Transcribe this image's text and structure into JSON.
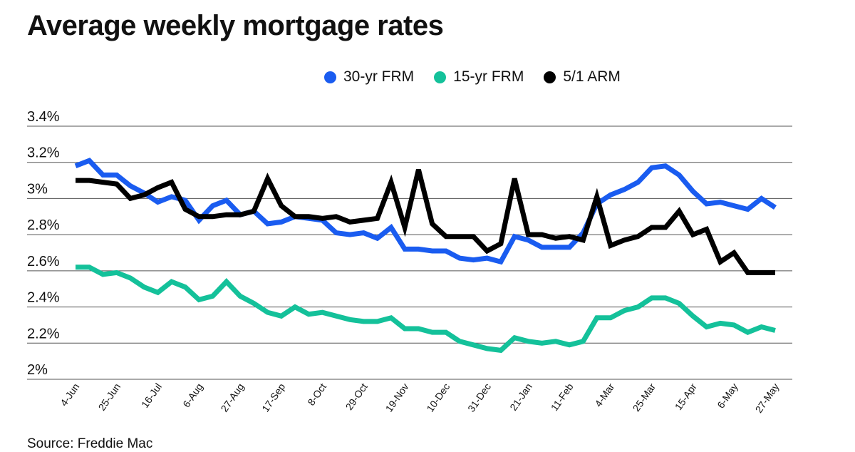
{
  "title": "Average weekly mortgage rates",
  "source": "Source: Freddie Mac",
  "chart_data": {
    "type": "line",
    "title": "Average weekly mortgage rates",
    "xlabel": "",
    "ylabel": "",
    "ylim": [
      2.0,
      3.4
    ],
    "yticks": [
      {
        "value": 3.4,
        "label": "3.4%"
      },
      {
        "value": 3.2,
        "label": "3.2%"
      },
      {
        "value": 3.0,
        "label": "3%"
      },
      {
        "value": 2.8,
        "label": "2.8%"
      },
      {
        "value": 2.6,
        "label": "2.6%"
      },
      {
        "value": 2.4,
        "label": "2.4%"
      },
      {
        "value": 2.2,
        "label": "2.2%"
      },
      {
        "value": 2.0,
        "label": "2%"
      }
    ],
    "grid": true,
    "legend_position": "top",
    "x_tick_labels": [
      "4-Jun",
      "25-Jun",
      "16-Jul",
      "6-Aug",
      "27-Aug",
      "17-Sep",
      "8-Oct",
      "29-Oct",
      "19-Nov",
      "10-Dec",
      "31-Dec",
      "21-Jan",
      "11-Feb",
      "4-Mar",
      "25-Mar",
      "15-Apr",
      "6-May",
      "27-May"
    ],
    "x_tick_every": 3,
    "n_weeks": 52,
    "series": [
      {
        "name": "30-yr FRM",
        "color": "#1a5cf0",
        "values": [
          3.18,
          3.21,
          3.13,
          3.13,
          3.07,
          3.03,
          2.98,
          3.01,
          2.99,
          2.88,
          2.96,
          2.99,
          2.91,
          2.93,
          2.86,
          2.87,
          2.9,
          2.89,
          2.88,
          2.81,
          2.8,
          2.81,
          2.78,
          2.84,
          2.72,
          2.72,
          2.71,
          2.71,
          2.67,
          2.66,
          2.67,
          2.65,
          2.79,
          2.77,
          2.73,
          2.73,
          2.73,
          2.81,
          2.97,
          3.02,
          3.05,
          3.09,
          3.17,
          3.18,
          3.13,
          3.04,
          2.97,
          2.98,
          2.96,
          2.94,
          3.0,
          2.95
        ]
      },
      {
        "name": "15-yr FRM",
        "color": "#14c19a",
        "values": [
          2.62,
          2.62,
          2.58,
          2.59,
          2.56,
          2.51,
          2.48,
          2.54,
          2.51,
          2.44,
          2.46,
          2.54,
          2.46,
          2.42,
          2.37,
          2.35,
          2.4,
          2.36,
          2.37,
          2.35,
          2.33,
          2.32,
          2.32,
          2.34,
          2.28,
          2.28,
          2.26,
          2.26,
          2.21,
          2.19,
          2.17,
          2.16,
          2.23,
          2.21,
          2.2,
          2.21,
          2.19,
          2.21,
          2.34,
          2.34,
          2.38,
          2.4,
          2.45,
          2.45,
          2.42,
          2.35,
          2.29,
          2.31,
          2.3,
          2.26,
          2.29,
          2.27
        ]
      },
      {
        "name": "5/1 ARM",
        "color": "#000000",
        "values": [
          3.1,
          3.1,
          3.09,
          3.08,
          3.0,
          3.02,
          3.06,
          3.09,
          2.94,
          2.9,
          2.9,
          2.91,
          2.91,
          2.93,
          3.11,
          2.96,
          2.9,
          2.9,
          2.89,
          2.9,
          2.87,
          2.88,
          2.89,
          3.09,
          2.84,
          3.16,
          2.86,
          2.79,
          2.79,
          2.79,
          2.71,
          2.75,
          3.11,
          2.8,
          2.8,
          2.78,
          2.79,
          2.77,
          3.01,
          2.74,
          2.77,
          2.79,
          2.84,
          2.84,
          2.93,
          2.8,
          2.83,
          2.65,
          2.7,
          2.59,
          2.59,
          2.59
        ]
      }
    ]
  }
}
